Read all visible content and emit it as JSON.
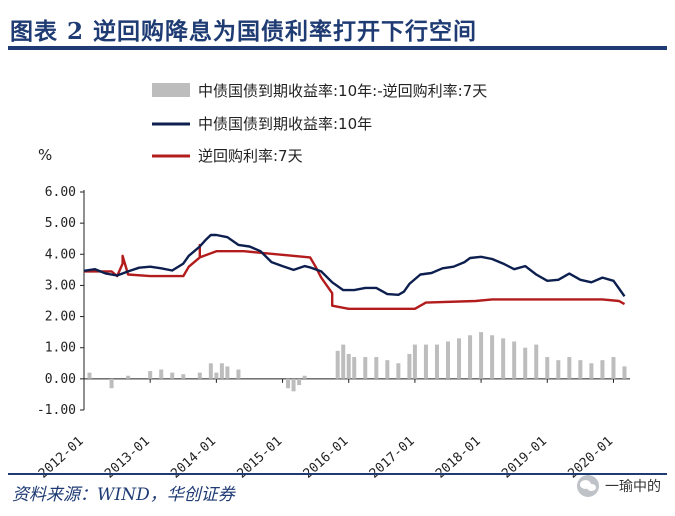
{
  "header": {
    "title": "图表 2   逆回购降息为国债利率打开下行空间"
  },
  "footer": {
    "source": "资料来源：WIND，华创证券"
  },
  "watermark": {
    "text": "一瑜中的",
    "icon": "wechat-icon"
  },
  "colors": {
    "spread": "#bdbdbd",
    "bond10y": "#0d1f4f",
    "reverse_repo": "#b31c1c",
    "brand": "#1f3b73"
  },
  "chart_data": {
    "type": "line",
    "ylabel": "%",
    "ylim": [
      -1.0,
      6.0
    ],
    "yticks": [
      "6.00",
      "5.00",
      "4.00",
      "3.00",
      "2.00",
      "1.00",
      "0.00",
      "-1.00"
    ],
    "xlim": [
      "2012-01",
      "2020-04"
    ],
    "xticks": [
      "2012-01",
      "2013-01",
      "2014-01",
      "2015-01",
      "2016-01",
      "2017-01",
      "2018-01",
      "2019-01",
      "2020-01"
    ],
    "legend": {
      "placement": "top",
      "entries": [
        {
          "name": "中债国债到期收益率:10年:-逆回购利率:7天",
          "style": "bar"
        },
        {
          "name": "中债国债到期收益率:10年",
          "style": "line"
        },
        {
          "name": "逆回购利率:7天",
          "style": "line"
        }
      ]
    },
    "series": [
      {
        "name": "中债国债到期收益率:10年",
        "x": [
          "2012-01",
          "2012-03",
          "2012-05",
          "2012-07",
          "2012-09",
          "2012-11",
          "2013-01",
          "2013-03",
          "2013-05",
          "2013-07",
          "2013-08",
          "2013-09",
          "2013-10",
          "2013-11",
          "2013-12",
          "2014-01",
          "2014-03",
          "2014-05",
          "2014-07",
          "2014-09",
          "2014-11",
          "2015-01",
          "2015-03",
          "2015-05",
          "2015-06",
          "2015-08",
          "2015-10",
          "2015-12",
          "2016-02",
          "2016-04",
          "2016-06",
          "2016-08",
          "2016-10",
          "2016-11",
          "2016-12",
          "2017-02",
          "2017-04",
          "2017-06",
          "2017-08",
          "2017-10",
          "2017-11",
          "2018-01",
          "2018-03",
          "2018-05",
          "2018-07",
          "2018-09",
          "2018-11",
          "2019-01",
          "2019-03",
          "2019-05",
          "2019-07",
          "2019-09",
          "2019-11",
          "2020-01",
          "2020-02",
          "2020-03"
        ],
        "values": [
          3.47,
          3.52,
          3.38,
          3.32,
          3.45,
          3.57,
          3.6,
          3.55,
          3.48,
          3.7,
          3.95,
          4.1,
          4.25,
          4.45,
          4.62,
          4.62,
          4.55,
          4.3,
          4.25,
          4.1,
          3.75,
          3.62,
          3.5,
          3.62,
          3.58,
          3.45,
          3.1,
          2.85,
          2.85,
          2.92,
          2.92,
          2.72,
          2.7,
          2.8,
          3.05,
          3.35,
          3.4,
          3.55,
          3.6,
          3.75,
          3.88,
          3.92,
          3.85,
          3.7,
          3.52,
          3.62,
          3.35,
          3.15,
          3.18,
          3.38,
          3.18,
          3.1,
          3.25,
          3.15,
          2.9,
          2.65
        ]
      },
      {
        "name": "逆回购利率:7天",
        "x": [
          "2012-01",
          "2012-05",
          "2012-06",
          "2012-07",
          "2012-08",
          "2012-08",
          "2012-09",
          "2013-01",
          "2013-07",
          "2013-08",
          "2013-10",
          "2013-10",
          "2013-10",
          "2014-01",
          "2014-06",
          "2015-06",
          "2015-07",
          "2015-08",
          "2015-10",
          "2015-10",
          "2016-01",
          "2017-01",
          "2017-02",
          "2017-03",
          "2017-12",
          "2018-03",
          "2019-11",
          "2020-02",
          "2020-03"
        ],
        "values": [
          3.45,
          3.45,
          3.45,
          3.3,
          3.7,
          3.95,
          3.35,
          3.3,
          3.3,
          3.6,
          3.9,
          4.3,
          3.9,
          4.1,
          4.1,
          3.9,
          3.6,
          3.25,
          2.75,
          2.35,
          2.25,
          2.25,
          2.35,
          2.45,
          2.5,
          2.55,
          2.55,
          2.5,
          2.4
        ]
      },
      {
        "name": "中债国债到期收益率:10年:-逆回购利率:7天",
        "x": [
          "2012-02",
          "2012-06",
          "2012-09",
          "2013-01",
          "2013-03",
          "2013-05",
          "2013-07",
          "2013-10",
          "2013-12",
          "2014-01",
          "2014-02",
          "2014-03",
          "2014-05",
          "2015-02",
          "2015-03",
          "2015-04",
          "2015-05",
          "2015-11",
          "2015-12",
          "2016-01",
          "2016-02",
          "2016-04",
          "2016-06",
          "2016-08",
          "2016-10",
          "2016-12",
          "2017-01",
          "2017-03",
          "2017-05",
          "2017-07",
          "2017-09",
          "2017-11",
          "2018-01",
          "2018-03",
          "2018-05",
          "2018-07",
          "2018-09",
          "2018-11",
          "2019-01",
          "2019-03",
          "2019-05",
          "2019-07",
          "2019-09",
          "2019-11",
          "2020-01",
          "2020-03"
        ],
        "values": [
          0.2,
          -0.3,
          0.1,
          0.25,
          0.3,
          0.2,
          0.15,
          0.2,
          0.5,
          0.2,
          0.5,
          0.4,
          0.3,
          -0.3,
          -0.4,
          -0.2,
          0.1,
          0.9,
          1.1,
          0.8,
          0.7,
          0.7,
          0.7,
          0.6,
          0.5,
          0.8,
          1.1,
          1.1,
          1.1,
          1.2,
          1.3,
          1.4,
          1.5,
          1.4,
          1.3,
          1.2,
          1.0,
          1.1,
          0.7,
          0.6,
          0.7,
          0.6,
          0.5,
          0.6,
          0.7,
          0.4
        ]
      }
    ]
  }
}
